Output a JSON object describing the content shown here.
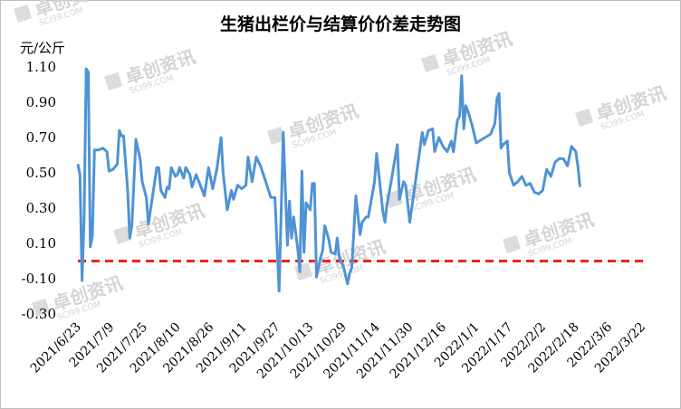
{
  "chart_data": {
    "type": "line",
    "title": "生猪出栏价与结算价价差走势图",
    "unit": "元/公斤",
    "ylim": [
      -0.3,
      1.1
    ],
    "yticks": [
      "1.10",
      "0.90",
      "0.70",
      "0.50",
      "0.30",
      "0.10",
      "-0.10",
      "-0.30"
    ],
    "x_range": [
      "2021/6/23",
      "2022/3/25"
    ],
    "xtick_labels": [
      "2021/6/23",
      "2021/7/9",
      "2021/7/25",
      "2021/8/10",
      "2021/8/26",
      "2021/9/11",
      "2021/9/27",
      "2021/10/13",
      "2021/10/29",
      "2021/11/14",
      "2021/11/30",
      "2021/12/16",
      "2022/1/1",
      "2022/1/17",
      "2022/2/2",
      "2022/2/18",
      "2022/3/6",
      "2022/3/22"
    ],
    "reference_line": {
      "y": 0,
      "color": "#e8251f",
      "style": "dashed"
    },
    "series": [
      {
        "color": "#4f93d5",
        "points": [
          [
            "2021/6/23",
            0.55
          ],
          [
            "2021/6/24",
            0.49
          ],
          [
            "2021/6/25",
            -0.11
          ],
          [
            "2021/6/26",
            0.25
          ],
          [
            "2021/6/27",
            1.09
          ],
          [
            "2021/6/28",
            1.07
          ],
          [
            "2021/6/29",
            0.08
          ],
          [
            "2021/6/30",
            0.14
          ],
          [
            "2021/7/1",
            0.63
          ],
          [
            "2021/7/3",
            0.63
          ],
          [
            "2021/7/5",
            0.64
          ],
          [
            "2021/7/7",
            0.62
          ],
          [
            "2021/7/8",
            0.51
          ],
          [
            "2021/7/10",
            0.52
          ],
          [
            "2021/7/12",
            0.55
          ],
          [
            "2021/7/13",
            0.74
          ],
          [
            "2021/7/14",
            0.71
          ],
          [
            "2021/7/15",
            0.71
          ],
          [
            "2021/7/17",
            0.4
          ],
          [
            "2021/7/18",
            0.13
          ],
          [
            "2021/7/19",
            0.2
          ],
          [
            "2021/7/21",
            0.69
          ],
          [
            "2021/7/23",
            0.58
          ],
          [
            "2021/7/24",
            0.45
          ],
          [
            "2021/7/26",
            0.36
          ],
          [
            "2021/7/27",
            0.21
          ],
          [
            "2021/7/29",
            0.37
          ],
          [
            "2021/7/31",
            0.53
          ],
          [
            "2021/8/1",
            0.53
          ],
          [
            "2021/8/2",
            0.4
          ],
          [
            "2021/8/4",
            0.36
          ],
          [
            "2021/8/5",
            0.42
          ],
          [
            "2021/8/6",
            0.41
          ],
          [
            "2021/8/7",
            0.53
          ],
          [
            "2021/8/9",
            0.48
          ],
          [
            "2021/8/10",
            0.49
          ],
          [
            "2021/8/11",
            0.53
          ],
          [
            "2021/8/13",
            0.47
          ],
          [
            "2021/8/14",
            0.53
          ],
          [
            "2021/8/16",
            0.49
          ],
          [
            "2021/8/17",
            0.42
          ],
          [
            "2021/8/19",
            0.49
          ],
          [
            "2021/8/21",
            0.43
          ],
          [
            "2021/8/23",
            0.37
          ],
          [
            "2021/8/25",
            0.53
          ],
          [
            "2021/8/27",
            0.41
          ],
          [
            "2021/8/29",
            0.52
          ],
          [
            "2021/8/31",
            0.7
          ],
          [
            "2021/9/1",
            0.5
          ],
          [
            "2021/9/3",
            0.29
          ],
          [
            "2021/9/5",
            0.4
          ],
          [
            "2021/9/6",
            0.35
          ],
          [
            "2021/9/8",
            0.43
          ],
          [
            "2021/9/10",
            0.41
          ],
          [
            "2021/9/12",
            0.43
          ],
          [
            "2021/9/13",
            0.59
          ],
          [
            "2021/9/15",
            0.45
          ],
          [
            "2021/9/17",
            0.59
          ],
          [
            "2021/9/19",
            0.54
          ],
          [
            "2021/9/21",
            0.47
          ],
          [
            "2021/9/24",
            0.36
          ],
          [
            "2021/9/26",
            0.36
          ],
          [
            "2021/9/28",
            -0.17
          ],
          [
            "2021/9/30",
            0.73
          ],
          [
            "2021/10/2",
            0.09
          ],
          [
            "2021/10/3",
            0.34
          ],
          [
            "2021/10/4",
            0.13
          ],
          [
            "2021/10/5",
            0.25
          ],
          [
            "2021/10/7",
            0.07
          ],
          [
            "2021/10/8",
            -0.06
          ],
          [
            "2021/10/9",
            0.51
          ],
          [
            "2021/10/10",
            0.05
          ],
          [
            "2021/10/11",
            0.33
          ],
          [
            "2021/10/13",
            0.29
          ],
          [
            "2021/10/14",
            0.44
          ],
          [
            "2021/10/15",
            0.44
          ],
          [
            "2021/10/16",
            -0.09
          ],
          [
            "2021/10/18",
            0.02
          ],
          [
            "2021/10/19",
            0.06
          ],
          [
            "2021/10/20",
            0.2
          ],
          [
            "2021/10/22",
            0.12
          ],
          [
            "2021/10/23",
            0.05
          ],
          [
            "2021/10/25",
            0.04
          ],
          [
            "2021/10/26",
            0.13
          ],
          [
            "2021/10/27",
            0.02
          ],
          [
            "2021/10/29",
            -0.03
          ],
          [
            "2021/10/31",
            -0.13
          ],
          [
            "2021/11/1",
            -0.07
          ],
          [
            "2021/11/2",
            -0.04
          ],
          [
            "2021/11/4",
            0.37
          ],
          [
            "2021/11/6",
            0.15
          ],
          [
            "2021/11/7",
            0.22
          ],
          [
            "2021/11/9",
            0.25
          ],
          [
            "2021/11/10",
            0.25
          ],
          [
            "2021/11/13",
            0.45
          ],
          [
            "2021/11/14",
            0.61
          ],
          [
            "2021/11/17",
            0.28
          ],
          [
            "2021/11/18",
            0.22
          ],
          [
            "2021/11/19",
            0.32
          ],
          [
            "2021/11/21",
            0.45
          ],
          [
            "2021/11/24",
            0.66
          ],
          [
            "2021/11/25",
            0.35
          ],
          [
            "2021/11/27",
            0.45
          ],
          [
            "2021/11/28",
            0.43
          ],
          [
            "2021/11/30",
            0.22
          ],
          [
            "2021/12/2",
            0.39
          ],
          [
            "2021/12/6",
            0.73
          ],
          [
            "2021/12/7",
            0.66
          ],
          [
            "2021/12/9",
            0.74
          ],
          [
            "2021/12/11",
            0.75
          ],
          [
            "2021/12/12",
            0.62
          ],
          [
            "2021/12/14",
            0.7
          ],
          [
            "2021/12/16",
            0.65
          ],
          [
            "2021/12/18",
            0.62
          ],
          [
            "2021/12/20",
            0.68
          ],
          [
            "2021/12/21",
            0.62
          ],
          [
            "2021/12/23",
            0.8
          ],
          [
            "2021/12/24",
            0.82
          ],
          [
            "2021/12/25",
            1.05
          ],
          [
            "2021/12/26",
            0.75
          ],
          [
            "2021/12/27",
            0.88
          ],
          [
            "2021/12/28",
            0.85
          ],
          [
            "2021/12/30",
            0.77
          ],
          [
            "2022/1/1",
            0.67
          ],
          [
            "2022/1/8",
            0.72
          ],
          [
            "2022/1/10",
            0.78
          ],
          [
            "2022/1/11",
            0.92
          ],
          [
            "2022/1/12",
            0.95
          ],
          [
            "2022/1/13",
            0.64
          ],
          [
            "2022/1/14",
            0.66
          ],
          [
            "2022/1/16",
            0.68
          ],
          [
            "2022/1/17",
            0.5
          ],
          [
            "2022/1/19",
            0.43
          ],
          [
            "2022/1/21",
            0.45
          ],
          [
            "2022/1/23",
            0.48
          ],
          [
            "2022/1/25",
            0.43
          ],
          [
            "2022/1/27",
            0.44
          ],
          [
            "2022/1/29",
            0.39
          ],
          [
            "2022/1/31",
            0.38
          ],
          [
            "2022/2/2",
            0.4
          ],
          [
            "2022/2/4",
            0.52
          ],
          [
            "2022/2/6",
            0.48
          ],
          [
            "2022/2/8",
            0.56
          ],
          [
            "2022/2/10",
            0.58
          ],
          [
            "2022/2/12",
            0.58
          ],
          [
            "2022/2/14",
            0.54
          ],
          [
            "2022/2/16",
            0.65
          ],
          [
            "2022/2/18",
            0.62
          ],
          [
            "2022/2/19",
            0.54
          ],
          [
            "2022/2/20",
            0.42
          ]
        ]
      }
    ]
  },
  "watermark": {
    "brand": "卓创资讯",
    "domain": "SCI99.COM"
  }
}
